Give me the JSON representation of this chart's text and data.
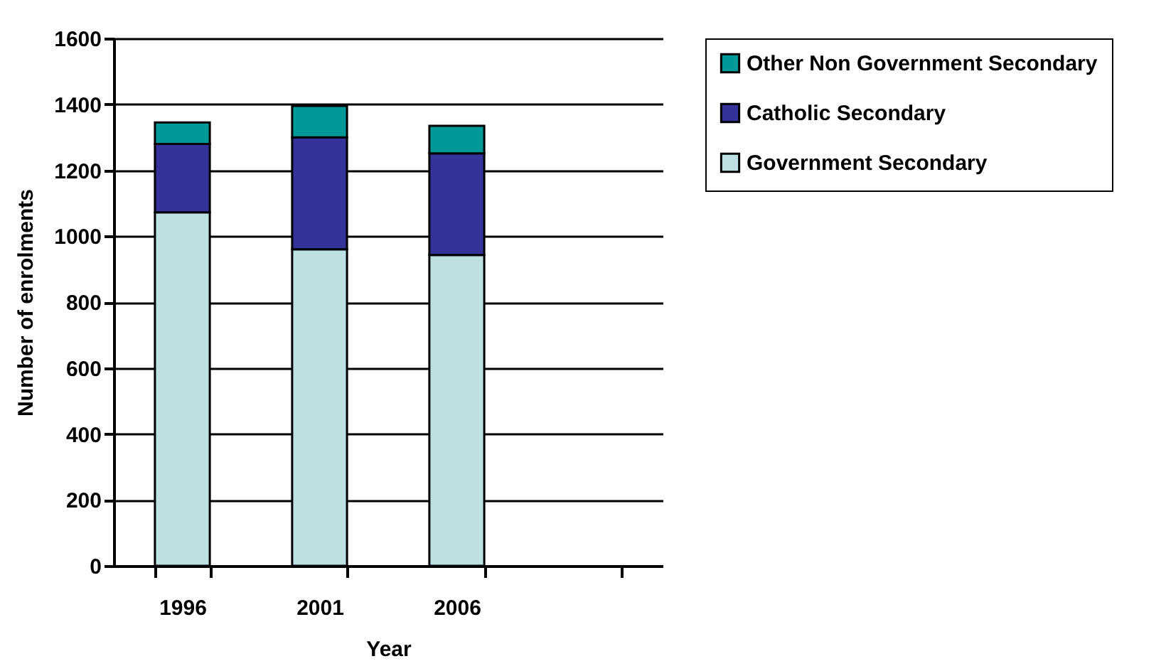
{
  "chart_data": {
    "type": "bar",
    "stacked": true,
    "xlabel": "Year",
    "ylabel": "Number of enrolments",
    "categories": [
      "1996",
      "2001",
      "2006",
      null
    ],
    "series": [
      {
        "name": "Government Secondary",
        "color": "#bde0e2",
        "values": [
          1072,
          960,
          943,
          null
        ]
      },
      {
        "name": "Catholic Secondary",
        "color": "#333399",
        "values": [
          208,
          340,
          308,
          null
        ]
      },
      {
        "name": "Other Non Government Secondary",
        "color": "#009999",
        "values": [
          65,
          95,
          84,
          null
        ]
      }
    ],
    "ylim": [
      0,
      1600
    ],
    "yticks": [
      0,
      200,
      400,
      600,
      800,
      1000,
      1200,
      1400,
      1600
    ],
    "grid": "y",
    "legend": "right"
  }
}
